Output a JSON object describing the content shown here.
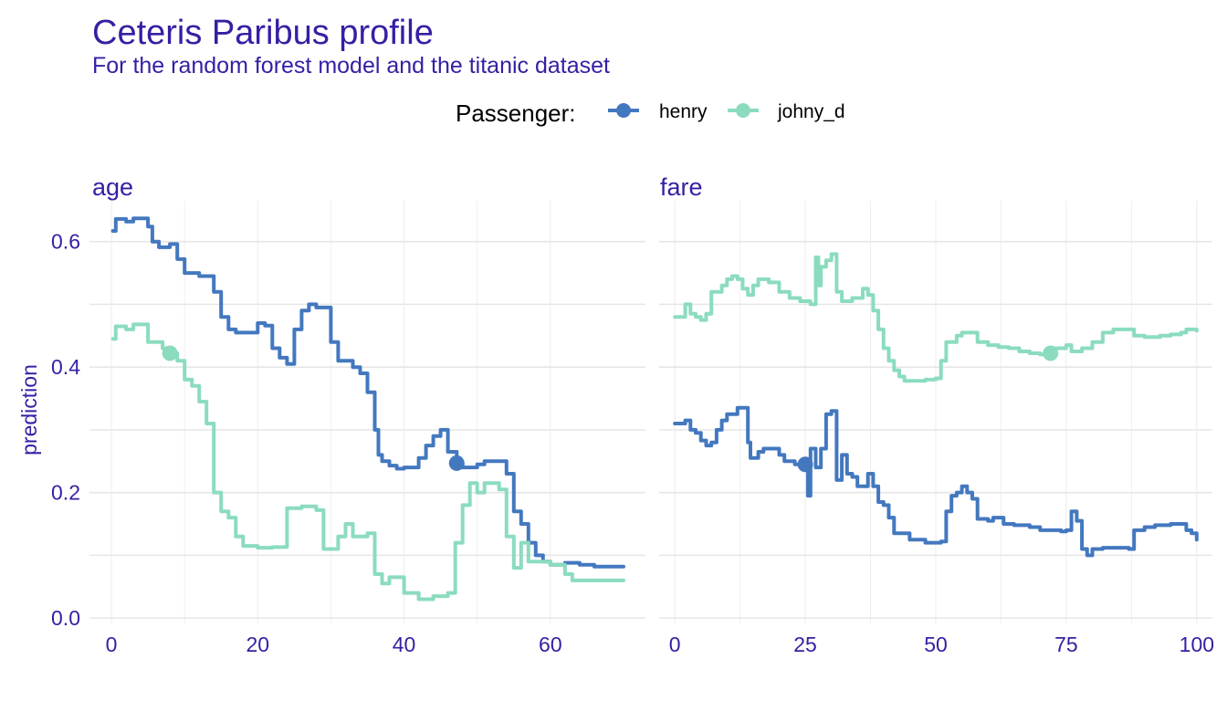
{
  "title": "Ceteris Paribus profile",
  "subtitle": "For the random forest model and the titanic dataset",
  "legend": {
    "title": "Passenger:",
    "position": "top-center"
  },
  "colors": {
    "henry": "#4378bf",
    "johny_d": "#8bdcbe",
    "text": "#371ea3",
    "grid": "#e6e6e6"
  },
  "chart_data": [
    {
      "type": "line",
      "panel_title": "age",
      "ylabel": "prediction",
      "xlim": [
        -3,
        73
      ],
      "ylim": [
        -0.01,
        0.665
      ],
      "x_ticks": [
        0,
        20,
        40,
        60
      ],
      "y_ticks": [
        0.0,
        0.2,
        0.4,
        0.6
      ],
      "y_tick_labels": [
        "0.0",
        "0.2",
        "0.4",
        "0.6"
      ],
      "grid": true,
      "series": [
        {
          "name": "henry",
          "points": [
            [
              0.2,
              0.617
            ],
            [
              0.6,
              0.636
            ],
            [
              2,
              0.632
            ],
            [
              3,
              0.637
            ],
            [
              5,
              0.624
            ],
            [
              5.6,
              0.6
            ],
            [
              6.5,
              0.591
            ],
            [
              8,
              0.596
            ],
            [
              9,
              0.572
            ],
            [
              10,
              0.55
            ],
            [
              12,
              0.545
            ],
            [
              14,
              0.52
            ],
            [
              15,
              0.48
            ],
            [
              16,
              0.46
            ],
            [
              17,
              0.455
            ],
            [
              20,
              0.47
            ],
            [
              21,
              0.466
            ],
            [
              22,
              0.43
            ],
            [
              23,
              0.415
            ],
            [
              24,
              0.405
            ],
            [
              25,
              0.46
            ],
            [
              26,
              0.49
            ],
            [
              27,
              0.5
            ],
            [
              28,
              0.495
            ],
            [
              30,
              0.44
            ],
            [
              31,
              0.41
            ],
            [
              33,
              0.4
            ],
            [
              34,
              0.39
            ],
            [
              35,
              0.36
            ],
            [
              36,
              0.3
            ],
            [
              36.5,
              0.26
            ],
            [
              37,
              0.25
            ],
            [
              38,
              0.243
            ],
            [
              39,
              0.238
            ],
            [
              40,
              0.24
            ],
            [
              42,
              0.255
            ],
            [
              43,
              0.275
            ],
            [
              44,
              0.29
            ],
            [
              45,
              0.3
            ],
            [
              46,
              0.265
            ],
            [
              47.2,
              0.247
            ],
            [
              48,
              0.24
            ],
            [
              50,
              0.245
            ],
            [
              51,
              0.25
            ],
            [
              53,
              0.25
            ],
            [
              54,
              0.23
            ],
            [
              55,
              0.17
            ],
            [
              56,
              0.15
            ],
            [
              57,
              0.12
            ],
            [
              58,
              0.1
            ],
            [
              59,
              0.09
            ],
            [
              60,
              0.085
            ],
            [
              62,
              0.088
            ],
            [
              64,
              0.085
            ],
            [
              66,
              0.082
            ],
            [
              70,
              0.082
            ]
          ],
          "marker": [
            47.2,
            0.247
          ]
        },
        {
          "name": "johny_d",
          "points": [
            [
              0.2,
              0.445
            ],
            [
              0.6,
              0.465
            ],
            [
              2,
              0.46
            ],
            [
              3,
              0.468
            ],
            [
              5,
              0.44
            ],
            [
              7,
              0.43
            ],
            [
              8,
              0.422
            ],
            [
              9,
              0.41
            ],
            [
              10,
              0.38
            ],
            [
              11,
              0.37
            ],
            [
              12,
              0.345
            ],
            [
              13,
              0.31
            ],
            [
              14,
              0.2
            ],
            [
              15,
              0.17
            ],
            [
              16,
              0.16
            ],
            [
              17,
              0.13
            ],
            [
              18,
              0.115
            ],
            [
              20,
              0.112
            ],
            [
              22,
              0.113
            ],
            [
              24,
              0.175
            ],
            [
              26,
              0.178
            ],
            [
              28,
              0.172
            ],
            [
              29,
              0.11
            ],
            [
              31,
              0.13
            ],
            [
              32,
              0.15
            ],
            [
              33,
              0.13
            ],
            [
              35,
              0.135
            ],
            [
              36,
              0.07
            ],
            [
              37,
              0.055
            ],
            [
              38,
              0.065
            ],
            [
              40,
              0.04
            ],
            [
              42,
              0.03
            ],
            [
              44,
              0.035
            ],
            [
              46,
              0.04
            ],
            [
              47,
              0.12
            ],
            [
              48,
              0.18
            ],
            [
              49,
              0.215
            ],
            [
              50,
              0.2
            ],
            [
              51,
              0.215
            ],
            [
              53,
              0.205
            ],
            [
              54,
              0.13
            ],
            [
              55,
              0.08
            ],
            [
              56,
              0.12
            ],
            [
              57,
              0.09
            ],
            [
              60,
              0.085
            ],
            [
              62,
              0.07
            ],
            [
              63,
              0.06
            ],
            [
              70,
              0.06
            ]
          ],
          "marker": [
            8,
            0.422
          ]
        }
      ]
    },
    {
      "type": "line",
      "panel_title": "fare",
      "ylabel": "",
      "xlim": [
        -3,
        103
      ],
      "ylim": [
        -0.01,
        0.665
      ],
      "x_ticks": [
        0,
        25,
        50,
        75,
        100
      ],
      "y_ticks": [
        0.0,
        0.2,
        0.4,
        0.6
      ],
      "grid": true,
      "series": [
        {
          "name": "henry",
          "points": [
            [
              0,
              0.31
            ],
            [
              1,
              0.31
            ],
            [
              2,
              0.315
            ],
            [
              3,
              0.3
            ],
            [
              4,
              0.295
            ],
            [
              5,
              0.283
            ],
            [
              6,
              0.275
            ],
            [
              7,
              0.28
            ],
            [
              8,
              0.3
            ],
            [
              9,
              0.315
            ],
            [
              10,
              0.325
            ],
            [
              12,
              0.335
            ],
            [
              13,
              0.335
            ],
            [
              14,
              0.28
            ],
            [
              14.5,
              0.255
            ],
            [
              16,
              0.265
            ],
            [
              17,
              0.27
            ],
            [
              19,
              0.27
            ],
            [
              20,
              0.26
            ],
            [
              21,
              0.25
            ],
            [
              23,
              0.245
            ],
            [
              24.5,
              0.245
            ],
            [
              25.5,
              0.195
            ],
            [
              26,
              0.27
            ],
            [
              27,
              0.24
            ],
            [
              28,
              0.27
            ],
            [
              29,
              0.325
            ],
            [
              30,
              0.33
            ],
            [
              31,
              0.22
            ],
            [
              32,
              0.26
            ],
            [
              33,
              0.23
            ],
            [
              34,
              0.225
            ],
            [
              35,
              0.21
            ],
            [
              37,
              0.23
            ],
            [
              38,
              0.21
            ],
            [
              39,
              0.185
            ],
            [
              40,
              0.18
            ],
            [
              41,
              0.16
            ],
            [
              42,
              0.135
            ],
            [
              45,
              0.125
            ],
            [
              48,
              0.12
            ],
            [
              51,
              0.122
            ],
            [
              52,
              0.17
            ],
            [
              53,
              0.195
            ],
            [
              54,
              0.2
            ],
            [
              55,
              0.21
            ],
            [
              56,
              0.2
            ],
            [
              57,
              0.19
            ],
            [
              58,
              0.158
            ],
            [
              60,
              0.155
            ],
            [
              61,
              0.16
            ],
            [
              63,
              0.15
            ],
            [
              65,
              0.148
            ],
            [
              68,
              0.145
            ],
            [
              70,
              0.14
            ],
            [
              72,
              0.14
            ],
            [
              74,
              0.138
            ],
            [
              75,
              0.14
            ],
            [
              76,
              0.17
            ],
            [
              77,
              0.155
            ],
            [
              78,
              0.11
            ],
            [
              79,
              0.1
            ],
            [
              80,
              0.11
            ],
            [
              82,
              0.112
            ],
            [
              85,
              0.112
            ],
            [
              87,
              0.11
            ],
            [
              88,
              0.14
            ],
            [
              90,
              0.145
            ],
            [
              92,
              0.148
            ],
            [
              95,
              0.15
            ],
            [
              97,
              0.15
            ],
            [
              98,
              0.14
            ],
            [
              99,
              0.135
            ],
            [
              100,
              0.125
            ]
          ],
          "marker": [
            25,
            0.245
          ]
        },
        {
          "name": "johny_d",
          "points": [
            [
              0,
              0.48
            ],
            [
              1,
              0.48
            ],
            [
              2,
              0.5
            ],
            [
              3,
              0.485
            ],
            [
              4,
              0.48
            ],
            [
              5,
              0.475
            ],
            [
              6,
              0.485
            ],
            [
              7,
              0.52
            ],
            [
              9,
              0.53
            ],
            [
              10,
              0.54
            ],
            [
              11,
              0.545
            ],
            [
              12,
              0.54
            ],
            [
              13,
              0.525
            ],
            [
              14,
              0.515
            ],
            [
              15,
              0.53
            ],
            [
              16,
              0.54
            ],
            [
              18,
              0.535
            ],
            [
              20,
              0.52
            ],
            [
              22,
              0.51
            ],
            [
              24,
              0.505
            ],
            [
              26,
              0.5
            ],
            [
              27,
              0.575
            ],
            [
              27.5,
              0.53
            ],
            [
              28,
              0.56
            ],
            [
              29,
              0.57
            ],
            [
              30,
              0.58
            ],
            [
              31,
              0.52
            ],
            [
              32,
              0.505
            ],
            [
              34,
              0.51
            ],
            [
              36,
              0.525
            ],
            [
              37,
              0.515
            ],
            [
              38,
              0.49
            ],
            [
              39,
              0.46
            ],
            [
              40,
              0.43
            ],
            [
              41,
              0.41
            ],
            [
              42,
              0.395
            ],
            [
              43,
              0.385
            ],
            [
              44,
              0.378
            ],
            [
              46,
              0.378
            ],
            [
              48,
              0.38
            ],
            [
              50,
              0.382
            ],
            [
              51,
              0.41
            ],
            [
              52,
              0.44
            ],
            [
              53,
              0.44
            ],
            [
              54,
              0.45
            ],
            [
              55,
              0.455
            ],
            [
              57,
              0.455
            ],
            [
              58,
              0.44
            ],
            [
              60,
              0.435
            ],
            [
              62,
              0.432
            ],
            [
              64,
              0.43
            ],
            [
              66,
              0.425
            ],
            [
              68,
              0.422
            ],
            [
              70,
              0.42
            ],
            [
              72,
              0.425
            ],
            [
              73,
              0.43
            ],
            [
              75,
              0.435
            ],
            [
              76,
              0.425
            ],
            [
              77,
              0.425
            ],
            [
              78,
              0.43
            ],
            [
              80,
              0.44
            ],
            [
              82,
              0.455
            ],
            [
              84,
              0.46
            ],
            [
              87,
              0.46
            ],
            [
              88,
              0.45
            ],
            [
              90,
              0.448
            ],
            [
              93,
              0.45
            ],
            [
              95,
              0.452
            ],
            [
              97,
              0.455
            ],
            [
              98,
              0.46
            ],
            [
              100,
              0.458
            ]
          ],
          "marker": [
            72,
            0.422
          ]
        }
      ]
    }
  ]
}
